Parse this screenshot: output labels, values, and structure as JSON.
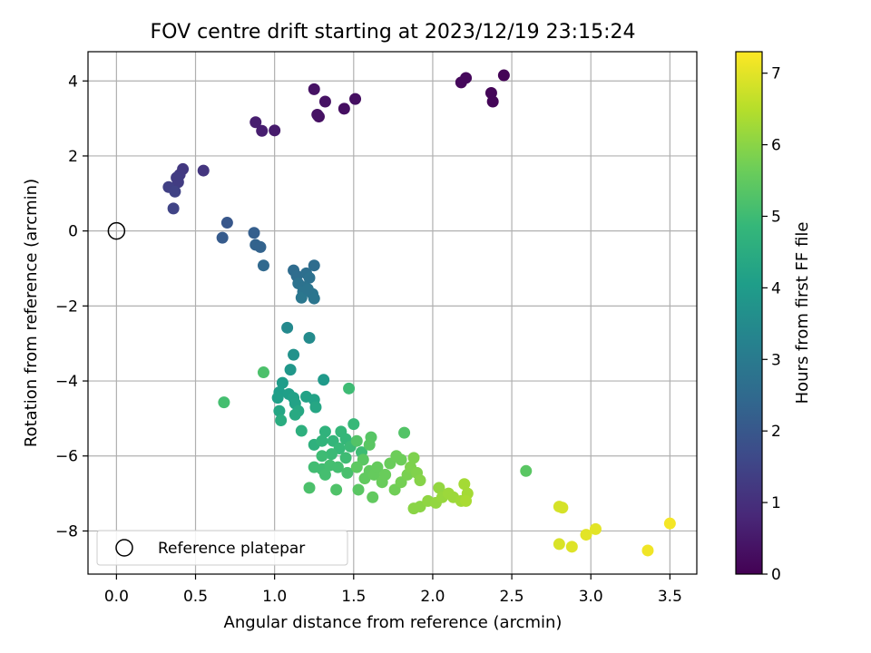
{
  "chart_data": {
    "type": "scatter",
    "title": "FOV centre drift starting at 2023/12/19 23:15:24",
    "xlabel": "Angular distance from reference (arcmin)",
    "ylabel": "Rotation from reference (arcmin)",
    "xlim": [
      -0.18,
      3.67
    ],
    "ylim": [
      -9.15,
      4.78
    ],
    "xticks": [
      0.0,
      0.5,
      1.0,
      1.5,
      2.0,
      2.5,
      3.0,
      3.5
    ],
    "yticks": [
      -8,
      -6,
      -4,
      -2,
      0,
      2,
      4
    ],
    "grid": true,
    "legend": {
      "position": "lower-left",
      "entries": [
        "Reference platepar"
      ]
    },
    "reference_point": {
      "x": 0.0,
      "y": 0.0,
      "label": "Reference platepar"
    },
    "colorbar": {
      "label": "Hours from first FF file",
      "colormap": "viridis",
      "range": [
        0,
        7.3
      ],
      "ticks": [
        0,
        1,
        2,
        3,
        4,
        5,
        6,
        7
      ]
    },
    "points": [
      {
        "x": 1.28,
        "y": 3.05,
        "h": 0.3
      },
      {
        "x": 1.25,
        "y": 3.78,
        "h": 0.35
      },
      {
        "x": 1.32,
        "y": 3.45,
        "h": 0.35
      },
      {
        "x": 1.27,
        "y": 3.1,
        "h": 0.35
      },
      {
        "x": 1.44,
        "y": 3.26,
        "h": 0.3
      },
      {
        "x": 1.51,
        "y": 3.52,
        "h": 0.3
      },
      {
        "x": 2.18,
        "y": 3.96,
        "h": 0.15
      },
      {
        "x": 2.21,
        "y": 4.08,
        "h": 0.15
      },
      {
        "x": 2.37,
        "y": 3.68,
        "h": 0.1
      },
      {
        "x": 2.38,
        "y": 3.45,
        "h": 0.1
      },
      {
        "x": 2.45,
        "y": 4.15,
        "h": 0.05
      },
      {
        "x": 0.88,
        "y": 2.9,
        "h": 0.6
      },
      {
        "x": 0.92,
        "y": 2.67,
        "h": 0.6
      },
      {
        "x": 1.0,
        "y": 2.68,
        "h": 0.55
      },
      {
        "x": 0.42,
        "y": 1.65,
        "h": 1.2
      },
      {
        "x": 0.55,
        "y": 1.61,
        "h": 1.15
      },
      {
        "x": 0.4,
        "y": 1.5,
        "h": 1.25
      },
      {
        "x": 0.38,
        "y": 1.42,
        "h": 1.3
      },
      {
        "x": 0.39,
        "y": 1.3,
        "h": 1.3
      },
      {
        "x": 0.33,
        "y": 1.17,
        "h": 1.4
      },
      {
        "x": 0.37,
        "y": 1.05,
        "h": 1.45
      },
      {
        "x": 0.36,
        "y": 0.6,
        "h": 1.5
      },
      {
        "x": 0.7,
        "y": 0.22,
        "h": 2.0
      },
      {
        "x": 0.67,
        "y": -0.18,
        "h": 2.1
      },
      {
        "x": 0.87,
        "y": -0.05,
        "h": 2.2
      },
      {
        "x": 0.88,
        "y": -0.37,
        "h": 2.3
      },
      {
        "x": 0.91,
        "y": -0.43,
        "h": 2.3
      },
      {
        "x": 0.93,
        "y": -0.92,
        "h": 2.45
      },
      {
        "x": 1.12,
        "y": -1.05,
        "h": 2.55
      },
      {
        "x": 1.14,
        "y": -1.2,
        "h": 2.6
      },
      {
        "x": 1.25,
        "y": -0.92,
        "h": 2.6
      },
      {
        "x": 1.2,
        "y": -1.13,
        "h": 2.65
      },
      {
        "x": 1.22,
        "y": -1.25,
        "h": 2.7
      },
      {
        "x": 1.15,
        "y": -1.4,
        "h": 2.75
      },
      {
        "x": 1.19,
        "y": -1.5,
        "h": 2.75
      },
      {
        "x": 1.18,
        "y": -1.62,
        "h": 2.8
      },
      {
        "x": 1.24,
        "y": -1.68,
        "h": 2.85
      },
      {
        "x": 1.25,
        "y": -1.8,
        "h": 2.85
      },
      {
        "x": 1.17,
        "y": -1.78,
        "h": 2.9
      },
      {
        "x": 1.21,
        "y": -1.55,
        "h": 2.8
      },
      {
        "x": 1.08,
        "y": -2.58,
        "h": 3.45
      },
      {
        "x": 1.22,
        "y": -2.85,
        "h": 3.5
      },
      {
        "x": 1.12,
        "y": -3.3,
        "h": 3.7
      },
      {
        "x": 1.1,
        "y": -3.7,
        "h": 3.85
      },
      {
        "x": 1.31,
        "y": -3.97,
        "h": 3.95
      },
      {
        "x": 1.05,
        "y": -4.05,
        "h": 4.0
      },
      {
        "x": 1.03,
        "y": -4.3,
        "h": 4.05
      },
      {
        "x": 1.09,
        "y": -4.35,
        "h": 4.1
      },
      {
        "x": 1.02,
        "y": -4.45,
        "h": 4.1
      },
      {
        "x": 1.12,
        "y": -4.45,
        "h": 4.15
      },
      {
        "x": 1.2,
        "y": -4.42,
        "h": 4.2
      },
      {
        "x": 1.25,
        "y": -4.5,
        "h": 4.2
      },
      {
        "x": 1.13,
        "y": -4.6,
        "h": 4.2
      },
      {
        "x": 1.26,
        "y": -4.7,
        "h": 4.3
      },
      {
        "x": 1.03,
        "y": -4.8,
        "h": 4.3
      },
      {
        "x": 1.15,
        "y": -4.8,
        "h": 4.35
      },
      {
        "x": 1.13,
        "y": -4.9,
        "h": 4.4
      },
      {
        "x": 1.04,
        "y": -5.05,
        "h": 4.5
      },
      {
        "x": 1.17,
        "y": -5.33,
        "h": 4.6
      },
      {
        "x": 1.47,
        "y": -4.2,
        "h": 5.0
      },
      {
        "x": 0.93,
        "y": -3.77,
        "h": 5.2
      },
      {
        "x": 0.68,
        "y": -4.57,
        "h": 5.1
      },
      {
        "x": 1.25,
        "y": -5.7,
        "h": 4.65
      },
      {
        "x": 1.32,
        "y": -5.35,
        "h": 4.7
      },
      {
        "x": 1.3,
        "y": -5.6,
        "h": 4.75
      },
      {
        "x": 1.37,
        "y": -5.6,
        "h": 4.8
      },
      {
        "x": 1.42,
        "y": -5.35,
        "h": 4.85
      },
      {
        "x": 1.45,
        "y": -5.55,
        "h": 4.85
      },
      {
        "x": 1.5,
        "y": -5.15,
        "h": 4.9
      },
      {
        "x": 1.41,
        "y": -5.8,
        "h": 4.9
      },
      {
        "x": 1.48,
        "y": -5.75,
        "h": 4.95
      },
      {
        "x": 1.36,
        "y": -5.95,
        "h": 4.95
      },
      {
        "x": 1.3,
        "y": -6.0,
        "h": 5.0
      },
      {
        "x": 1.45,
        "y": -6.05,
        "h": 5.0
      },
      {
        "x": 1.55,
        "y": -5.9,
        "h": 5.0
      },
      {
        "x": 1.25,
        "y": -6.3,
        "h": 5.05
      },
      {
        "x": 1.3,
        "y": -6.35,
        "h": 5.05
      },
      {
        "x": 1.35,
        "y": -6.25,
        "h": 5.1
      },
      {
        "x": 1.4,
        "y": -6.3,
        "h": 5.1
      },
      {
        "x": 1.32,
        "y": -6.5,
        "h": 5.1
      },
      {
        "x": 1.46,
        "y": -6.45,
        "h": 5.15
      },
      {
        "x": 1.22,
        "y": -6.85,
        "h": 5.2
      },
      {
        "x": 1.39,
        "y": -6.9,
        "h": 5.25
      },
      {
        "x": 1.53,
        "y": -6.9,
        "h": 5.4
      },
      {
        "x": 1.62,
        "y": -7.1,
        "h": 5.5
      },
      {
        "x": 1.52,
        "y": -5.6,
        "h": 5.3
      },
      {
        "x": 1.61,
        "y": -5.5,
        "h": 5.35
      },
      {
        "x": 1.6,
        "y": -5.7,
        "h": 5.4
      },
      {
        "x": 1.56,
        "y": -6.1,
        "h": 5.4
      },
      {
        "x": 1.52,
        "y": -6.3,
        "h": 5.45
      },
      {
        "x": 1.6,
        "y": -6.4,
        "h": 5.5
      },
      {
        "x": 1.57,
        "y": -6.6,
        "h": 5.5
      },
      {
        "x": 1.63,
        "y": -6.5,
        "h": 5.55
      },
      {
        "x": 1.65,
        "y": -6.3,
        "h": 5.55
      },
      {
        "x": 1.68,
        "y": -6.7,
        "h": 5.6
      },
      {
        "x": 1.7,
        "y": -6.5,
        "h": 5.6
      },
      {
        "x": 1.73,
        "y": -6.2,
        "h": 5.6
      },
      {
        "x": 1.77,
        "y": -6.0,
        "h": 5.65
      },
      {
        "x": 1.8,
        "y": -6.1,
        "h": 5.65
      },
      {
        "x": 1.82,
        "y": -5.38,
        "h": 5.3
      },
      {
        "x": 1.76,
        "y": -6.9,
        "h": 5.7
      },
      {
        "x": 1.8,
        "y": -6.7,
        "h": 5.75
      },
      {
        "x": 1.84,
        "y": -6.5,
        "h": 5.8
      },
      {
        "x": 1.86,
        "y": -6.3,
        "h": 5.85
      },
      {
        "x": 1.88,
        "y": -6.05,
        "h": 5.85
      },
      {
        "x": 1.9,
        "y": -6.45,
        "h": 5.9
      },
      {
        "x": 1.92,
        "y": -6.65,
        "h": 5.95
      },
      {
        "x": 1.88,
        "y": -7.4,
        "h": 6.0
      },
      {
        "x": 1.92,
        "y": -7.35,
        "h": 6.0
      },
      {
        "x": 1.97,
        "y": -7.2,
        "h": 6.05
      },
      {
        "x": 2.02,
        "y": -7.25,
        "h": 6.1
      },
      {
        "x": 2.04,
        "y": -6.85,
        "h": 6.1
      },
      {
        "x": 2.06,
        "y": -7.1,
        "h": 6.15
      },
      {
        "x": 2.1,
        "y": -7.0,
        "h": 6.2
      },
      {
        "x": 2.13,
        "y": -7.1,
        "h": 6.2
      },
      {
        "x": 2.18,
        "y": -7.2,
        "h": 6.25
      },
      {
        "x": 2.2,
        "y": -6.75,
        "h": 6.3
      },
      {
        "x": 2.22,
        "y": -7.0,
        "h": 6.3
      },
      {
        "x": 2.21,
        "y": -7.2,
        "h": 6.35
      },
      {
        "x": 2.59,
        "y": -6.4,
        "h": 5.4
      },
      {
        "x": 2.8,
        "y": -7.35,
        "h": 6.85
      },
      {
        "x": 2.82,
        "y": -7.38,
        "h": 6.85
      },
      {
        "x": 2.8,
        "y": -8.35,
        "h": 6.9
      },
      {
        "x": 2.88,
        "y": -8.42,
        "h": 6.95
      },
      {
        "x": 2.97,
        "y": -8.1,
        "h": 7.0
      },
      {
        "x": 3.03,
        "y": -7.95,
        "h": 7.0
      },
      {
        "x": 3.36,
        "y": -8.52,
        "h": 7.15
      },
      {
        "x": 3.5,
        "y": -7.8,
        "h": 7.2
      }
    ]
  }
}
